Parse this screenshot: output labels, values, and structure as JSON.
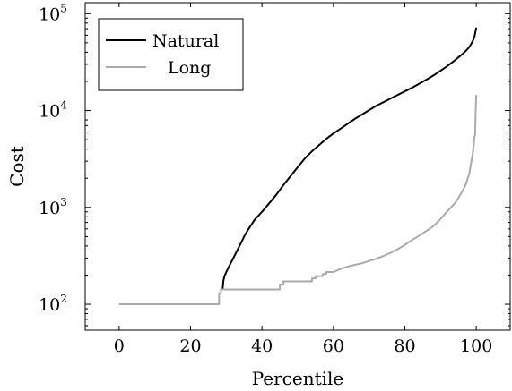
{
  "chart_data": {
    "type": "line",
    "xlabel": "Percentile",
    "ylabel": "Cost",
    "x_ticks": [
      "0",
      "20",
      "40",
      "60",
      "80",
      "100"
    ],
    "y_ticks": [
      {
        "base": "10",
        "exp": "2",
        "value": 100
      },
      {
        "base": "10",
        "exp": "3",
        "value": 1000
      },
      {
        "base": "10",
        "exp": "4",
        "value": 10000
      },
      {
        "base": "10",
        "exp": "5",
        "value": 100000
      }
    ],
    "xlim": [
      -9.5,
      109.5
    ],
    "ylim": [
      54,
      130000
    ],
    "y_scale": "log",
    "grid": false,
    "legend_position": "top-left",
    "series": [
      {
        "name": "Natural",
        "color": "#000000",
        "points": [
          [
            29,
            145
          ],
          [
            29.2,
            175
          ],
          [
            29.5,
            195
          ],
          [
            30,
            215
          ],
          [
            31,
            255
          ],
          [
            32,
            300
          ],
          [
            33,
            355
          ],
          [
            34,
            420
          ],
          [
            35,
            500
          ],
          [
            36,
            580
          ],
          [
            37,
            660
          ],
          [
            38,
            750
          ],
          [
            40,
            900
          ],
          [
            42,
            1100
          ],
          [
            44,
            1350
          ],
          [
            46,
            1700
          ],
          [
            48,
            2100
          ],
          [
            50,
            2600
          ],
          [
            52,
            3200
          ],
          [
            54,
            3800
          ],
          [
            56,
            4400
          ],
          [
            58,
            5100
          ],
          [
            60,
            5800
          ],
          [
            62,
            6500
          ],
          [
            64,
            7300
          ],
          [
            66,
            8200
          ],
          [
            68,
            9100
          ],
          [
            70,
            10100
          ],
          [
            72,
            11200
          ],
          [
            74,
            12200
          ],
          [
            76,
            13300
          ],
          [
            78,
            14500
          ],
          [
            80,
            15800
          ],
          [
            82,
            17200
          ],
          [
            84,
            18900
          ],
          [
            86,
            20800
          ],
          [
            88,
            23000
          ],
          [
            90,
            25800
          ],
          [
            92,
            29000
          ],
          [
            94,
            33000
          ],
          [
            96,
            38000
          ],
          [
            97,
            41000
          ],
          [
            98,
            45000
          ],
          [
            99,
            52000
          ],
          [
            99.5,
            58000
          ],
          [
            100,
            72000
          ]
        ]
      },
      {
        "name": "Long",
        "color": "#aaaaaa",
        "points": [
          [
            0,
            100
          ],
          [
            28,
            100
          ],
          [
            28,
            130
          ],
          [
            28.5,
            130
          ],
          [
            28.5,
            142
          ],
          [
            45,
            142
          ],
          [
            45,
            160
          ],
          [
            46,
            160
          ],
          [
            46,
            172
          ],
          [
            54,
            172
          ],
          [
            54,
            185
          ],
          [
            55,
            185
          ],
          [
            55,
            195
          ],
          [
            57,
            195
          ],
          [
            57,
            205
          ],
          [
            58,
            205
          ],
          [
            58,
            215
          ],
          [
            60,
            215
          ],
          [
            62,
            232
          ],
          [
            64,
            245
          ],
          [
            66,
            255
          ],
          [
            68,
            265
          ],
          [
            70,
            280
          ],
          [
            72,
            295
          ],
          [
            74,
            315
          ],
          [
            76,
            340
          ],
          [
            78,
            370
          ],
          [
            80,
            410
          ],
          [
            82,
            460
          ],
          [
            84,
            510
          ],
          [
            86,
            570
          ],
          [
            88,
            640
          ],
          [
            90,
            760
          ],
          [
            92,
            920
          ],
          [
            94,
            1100
          ],
          [
            95,
            1250
          ],
          [
            96,
            1450
          ],
          [
            97,
            1700
          ],
          [
            98,
            2200
          ],
          [
            98.5,
            2800
          ],
          [
            99,
            3600
          ],
          [
            99.3,
            4400
          ],
          [
            99.5,
            5400
          ],
          [
            99.7,
            5700
          ],
          [
            99.8,
            9000
          ],
          [
            100,
            14500
          ]
        ]
      }
    ]
  }
}
